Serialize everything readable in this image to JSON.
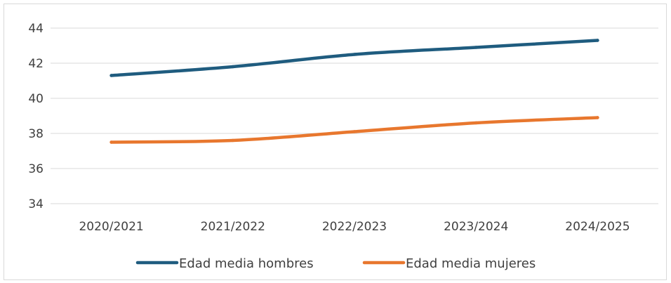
{
  "chart_data": {
    "type": "line",
    "categories": [
      "2020/2021",
      "2021/2022",
      "2022/2023",
      "2023/2024",
      "2024/2025"
    ],
    "series": [
      {
        "name": "Edad media hombres",
        "color": "#1f5c7f",
        "values": [
          41.3,
          41.8,
          42.5,
          42.9,
          43.3
        ]
      },
      {
        "name": "Edad media mujeres",
        "color": "#e8772e",
        "values": [
          37.5,
          37.6,
          38.1,
          38.6,
          38.9
        ]
      }
    ],
    "title": "",
    "xlabel": "",
    "ylabel": "",
    "ylim": [
      34,
      44
    ],
    "yticks": [
      34,
      36,
      38,
      40,
      42,
      44
    ],
    "grid": true,
    "legend_position": "bottom"
  }
}
